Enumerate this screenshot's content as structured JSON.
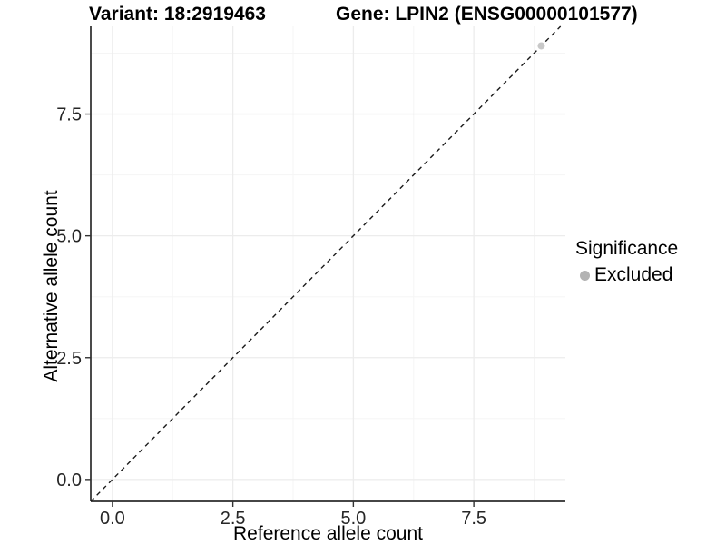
{
  "header": {
    "variant_title": "Variant: 18:2919463",
    "gene_title": "Gene: LPIN2 (ENSG00000101577)"
  },
  "legend": {
    "title": "Significance",
    "items": [
      {
        "label": "Excluded",
        "color": "#b3b3b3"
      }
    ]
  },
  "chart_data": {
    "type": "scatter",
    "title": "Variant: 18:2919463 / Gene: LPIN2 (ENSG00000101577)",
    "xlabel": "Reference allele count",
    "ylabel": "Alternative allele count",
    "xlim": [
      -0.45,
      9.4
    ],
    "ylim": [
      -0.45,
      9.3
    ],
    "xticks": [
      0,
      2.5,
      5,
      7.5
    ],
    "xtick_labels": [
      "0.0",
      "2.5",
      "5.0",
      "7.5"
    ],
    "yticks": [
      0,
      2.5,
      5,
      7.5
    ],
    "ytick_labels": [
      "0.0",
      "2.5",
      "5.0",
      "7.5"
    ],
    "x_minor_ticks": [
      1.25,
      3.75,
      6.25,
      8.75
    ],
    "y_minor_ticks": [
      1.25,
      3.75,
      6.25,
      8.75
    ],
    "grid": "major+minor",
    "legend_position": "right",
    "series": [
      {
        "name": "Excluded",
        "color": "#c8c8c8",
        "marker": "circle",
        "points": [
          [
            8.9,
            8.9
          ]
        ]
      }
    ],
    "reference_line": {
      "slope": 1,
      "intercept": 0,
      "style": "dashed",
      "color": "#1a1a1a"
    },
    "colors": {
      "grid_major": "#ececec",
      "grid_minor": "#f5f5f5",
      "axis_line": "#2b2b2b",
      "tick_mark": "#333333",
      "tick_label": "#262626"
    }
  }
}
